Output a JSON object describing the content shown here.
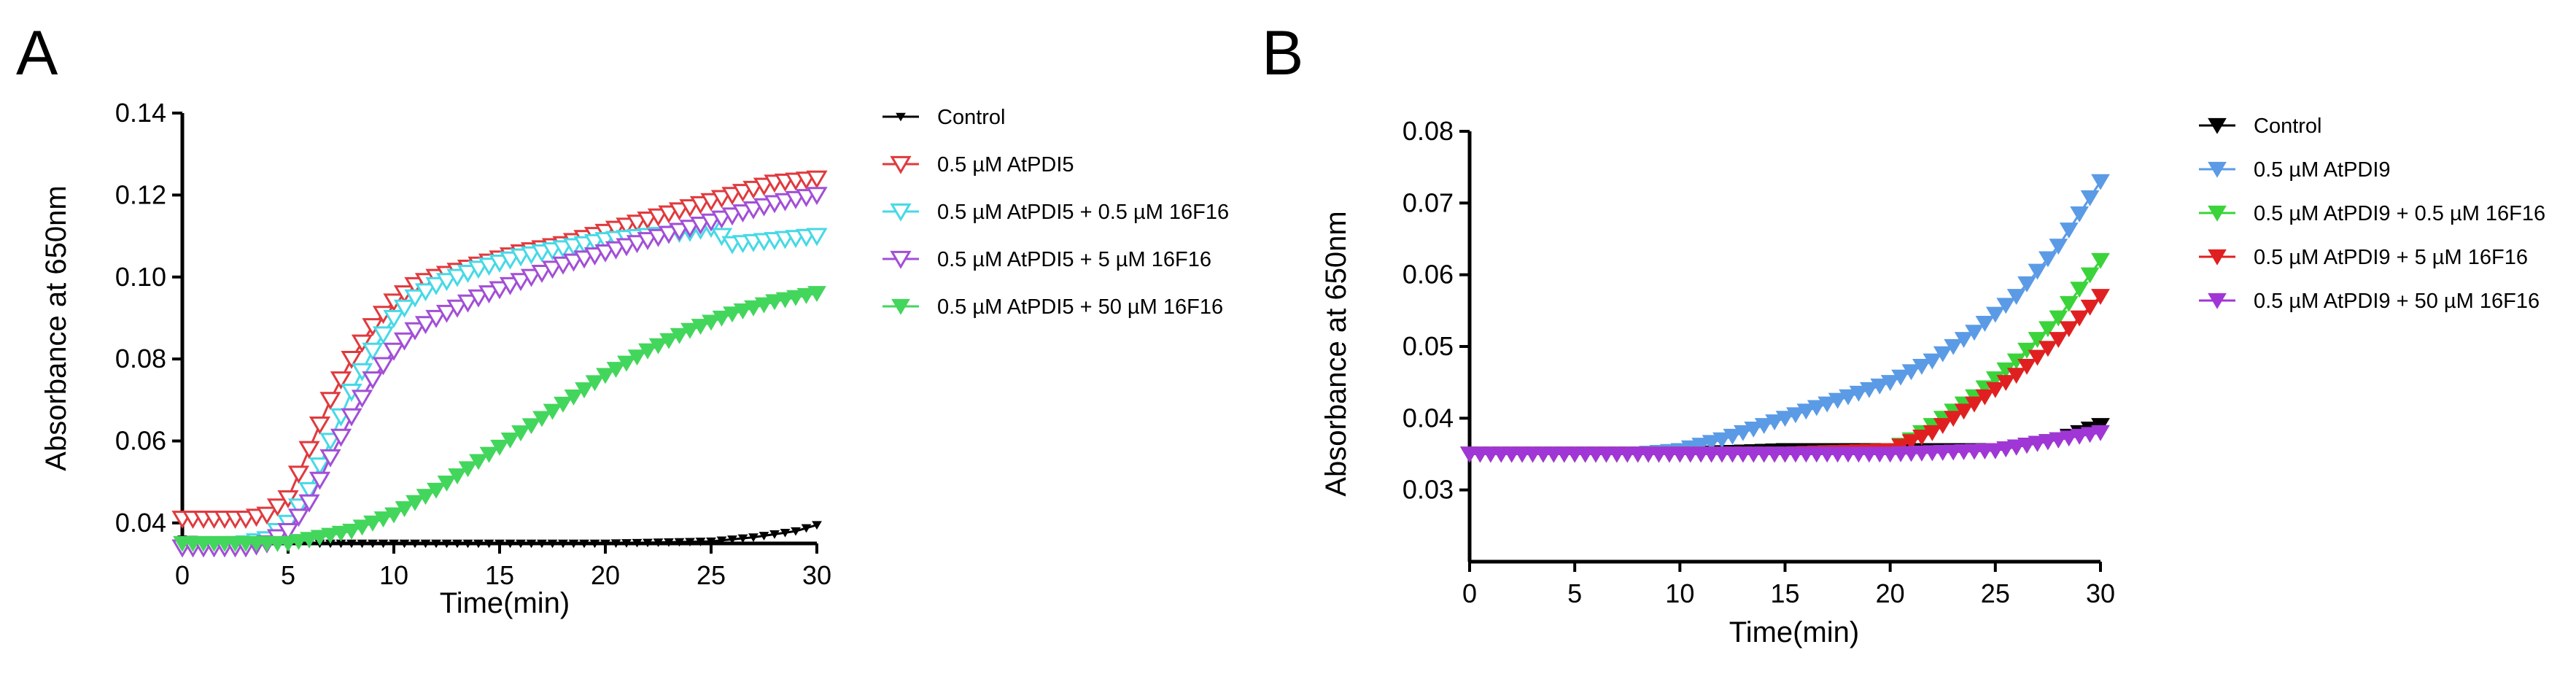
{
  "chart_data": [
    {
      "type": "line",
      "panel_label": "A",
      "xlabel": "Time(min)",
      "ylabel": "Absorbance at 650nm",
      "xlim": [
        0,
        30
      ],
      "ylim": [
        0.035,
        0.14
      ],
      "xticks": [
        0,
        5,
        10,
        15,
        20,
        25,
        30
      ],
      "yticks": [
        0.04,
        0.06,
        0.08,
        0.1,
        0.12,
        0.14
      ],
      "ytick_labels": [
        "0.04",
        "0.06",
        "0.08",
        "0.10",
        "0.12",
        "0.14"
      ],
      "legend_position": "right",
      "series": [
        {
          "name": "Control",
          "color": "#000000",
          "marker": "filled-down-triangle-small",
          "x": [
            0,
            5,
            10,
            15,
            20,
            25,
            27,
            29,
            30
          ],
          "y": [
            0.036,
            0.035,
            0.035,
            0.035,
            0.035,
            0.0355,
            0.0365,
            0.038,
            0.0395
          ]
        },
        {
          "name": "0.5 µM AtPDI5",
          "color": "#e03a3e",
          "marker": "open-down-triangle",
          "x": [
            0,
            3,
            4,
            5,
            6,
            7,
            8,
            9,
            10,
            11,
            12,
            14,
            16,
            18,
            20,
            22,
            24,
            26,
            28,
            30
          ],
          "y": [
            0.041,
            0.041,
            0.042,
            0.046,
            0.058,
            0.07,
            0.08,
            0.088,
            0.094,
            0.098,
            0.1,
            0.103,
            0.106,
            0.108,
            0.111,
            0.114,
            0.117,
            0.12,
            0.123,
            0.124
          ]
        },
        {
          "name": "0.5 µM AtPDI5 + 0.5 µM 16F16",
          "color": "#46d9e6",
          "marker": "open-down-triangle",
          "x": [
            0,
            3,
            4,
            5,
            6,
            7,
            8,
            9,
            10,
            11,
            12,
            14,
            16,
            18,
            20,
            22,
            24,
            25,
            26,
            28,
            30
          ],
          "y": [
            0.034,
            0.035,
            0.036,
            0.04,
            0.048,
            0.06,
            0.072,
            0.082,
            0.09,
            0.095,
            0.098,
            0.102,
            0.105,
            0.107,
            0.109,
            0.11,
            0.111,
            0.112,
            0.108,
            0.109,
            0.11
          ]
        },
        {
          "name": "0.5 µM AtPDI5 + 5 µM 16F16",
          "color": "#a24fd6",
          "marker": "open-down-triangle",
          "x": [
            0,
            3,
            4,
            5,
            6,
            7,
            8,
            9,
            10,
            11,
            12,
            14,
            16,
            18,
            20,
            22,
            24,
            26,
            28,
            30
          ],
          "y": [
            0.034,
            0.034,
            0.035,
            0.038,
            0.045,
            0.056,
            0.066,
            0.075,
            0.082,
            0.087,
            0.09,
            0.095,
            0.099,
            0.103,
            0.106,
            0.109,
            0.112,
            0.115,
            0.118,
            0.12
          ]
        },
        {
          "name": "0.5 µM AtPDI5 + 50 µM 16F16",
          "color": "#43d65c",
          "marker": "filled-down-triangle",
          "x": [
            0,
            5,
            6,
            8,
            10,
            12,
            14,
            16,
            18,
            20,
            22,
            24,
            26,
            28,
            30
          ],
          "y": [
            0.035,
            0.035,
            0.036,
            0.038,
            0.042,
            0.048,
            0.055,
            0.062,
            0.069,
            0.076,
            0.082,
            0.087,
            0.091,
            0.094,
            0.096
          ]
        }
      ]
    },
    {
      "type": "line",
      "panel_label": "B",
      "xlabel": "Time(min)",
      "ylabel": "Absorbance at 650nm",
      "xlim": [
        0,
        30
      ],
      "ylim": [
        0.02,
        0.08
      ],
      "xticks": [
        0,
        5,
        10,
        15,
        20,
        25,
        30
      ],
      "yticks": [
        0.03,
        0.04,
        0.05,
        0.06,
        0.07,
        0.08
      ],
      "ytick_labels": [
        "0.03",
        "0.04",
        "0.05",
        "0.06",
        "0.07",
        "0.08"
      ],
      "legend_position": "right",
      "series": [
        {
          "name": "Control",
          "color": "#000000",
          "marker": "filled-down-triangle",
          "x": [
            0,
            5,
            10,
            15,
            20,
            25,
            28,
            30
          ],
          "y": [
            0.035,
            0.035,
            0.035,
            0.0355,
            0.0355,
            0.0355,
            0.037,
            0.039
          ]
        },
        {
          "name": "0.5 µM AtPDI9",
          "color": "#5b9be6",
          "marker": "filled-down-triangle",
          "x": [
            0,
            5,
            8,
            10,
            12,
            14,
            16,
            18,
            20,
            22,
            24,
            26,
            28,
            30
          ],
          "y": [
            0.035,
            0.035,
            0.035,
            0.0355,
            0.037,
            0.039,
            0.041,
            0.043,
            0.045,
            0.048,
            0.052,
            0.057,
            0.064,
            0.073
          ]
        },
        {
          "name": "0.5 µM AtPDI9 + 0.5 µM 16F16",
          "color": "#3ad43a",
          "marker": "filled-down-triangle",
          "x": [
            0,
            5,
            10,
            15,
            20,
            21,
            22,
            24,
            26,
            28,
            30
          ],
          "y": [
            0.035,
            0.035,
            0.035,
            0.035,
            0.0355,
            0.037,
            0.039,
            0.043,
            0.048,
            0.054,
            0.062
          ]
        },
        {
          "name": "0.5 µM AtPDI9 + 5 µM 16F16",
          "color": "#e02020",
          "marker": "filled-down-triangle",
          "x": [
            0,
            5,
            10,
            15,
            20,
            22,
            24,
            26,
            28,
            30
          ],
          "y": [
            0.035,
            0.035,
            0.035,
            0.035,
            0.0355,
            0.038,
            0.042,
            0.046,
            0.051,
            0.057
          ]
        },
        {
          "name": "0.5 µM AtPDI9 + 50 µM 16F16",
          "color": "#a136d6",
          "marker": "filled-down-triangle",
          "x": [
            0,
            5,
            10,
            15,
            20,
            25,
            28,
            30
          ],
          "y": [
            0.035,
            0.035,
            0.035,
            0.035,
            0.035,
            0.0355,
            0.037,
            0.038
          ]
        }
      ]
    }
  ]
}
